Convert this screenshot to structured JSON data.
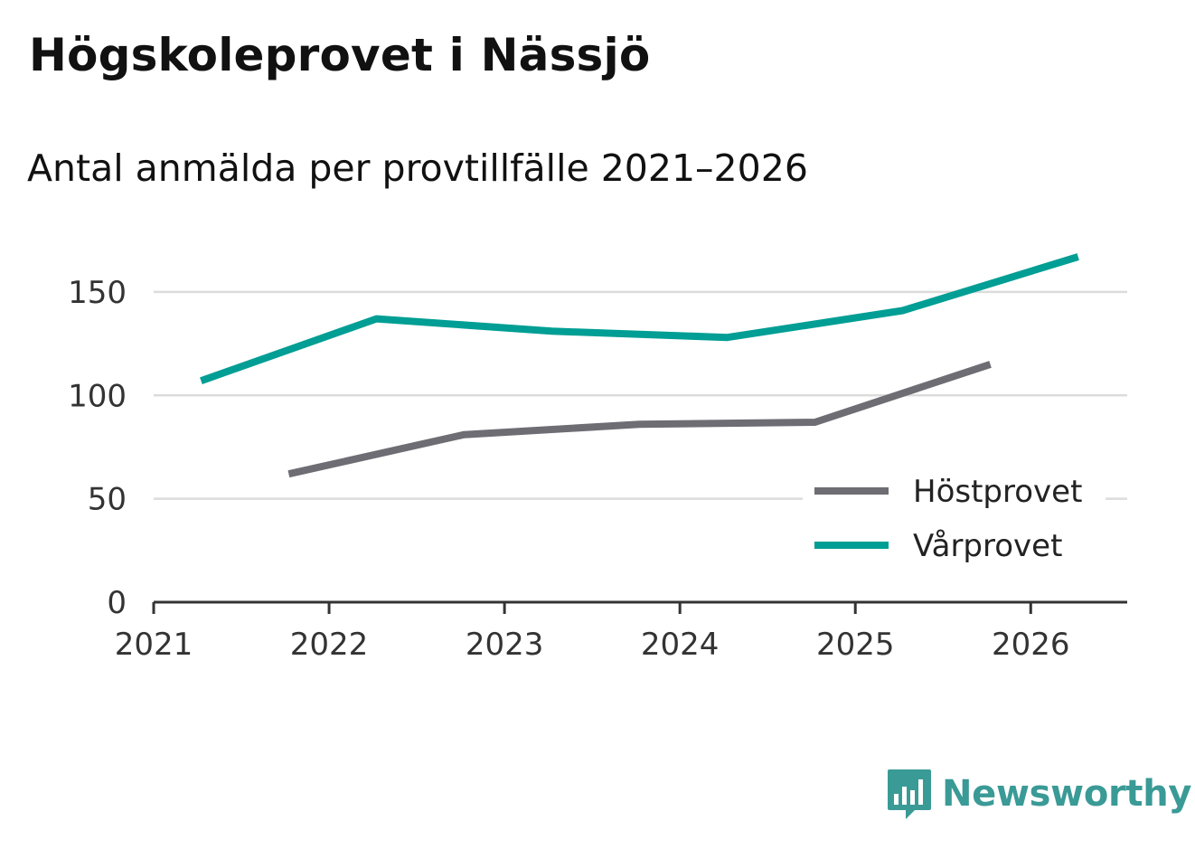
{
  "title": "Högskoleprovet i Nässjö",
  "subtitle": "Antal anmälda per provtillfälle 2021–2026",
  "brand": {
    "name": "Newsworthy",
    "color": "#3a9a96",
    "icon": "bar-chart-speech-icon"
  },
  "chart_data": {
    "type": "line",
    "title": "Högskoleprovet i Nässjö",
    "subtitle": "Antal anmälda per provtillfälle 2021–2026",
    "xlabel": "",
    "ylabel": "",
    "xlim": [
      2021,
      2026.55
    ],
    "ylim": [
      0,
      160
    ],
    "x_ticks": [
      "2021",
      "2022",
      "2023",
      "2024",
      "2025",
      "2026"
    ],
    "y_ticks": [
      "0",
      "50",
      "100",
      "150"
    ],
    "grid": true,
    "legend_position": "bottom-right",
    "series": [
      {
        "name": "Höstprovet",
        "color": "#6e6d74",
        "points": [
          {
            "x": 2021.77,
            "y": 62
          },
          {
            "x": 2022.77,
            "y": 81
          },
          {
            "x": 2023.77,
            "y": 86
          },
          {
            "x": 2024.77,
            "y": 87
          },
          {
            "x": 2025.77,
            "y": 115
          }
        ]
      },
      {
        "name": "Vårprovet",
        "color": "#009e94",
        "points": [
          {
            "x": 2021.27,
            "y": 107
          },
          {
            "x": 2022.27,
            "y": 137
          },
          {
            "x": 2023.27,
            "y": 131
          },
          {
            "x": 2024.27,
            "y": 128
          },
          {
            "x": 2025.27,
            "y": 141
          },
          {
            "x": 2026.27,
            "y": 167
          }
        ]
      }
    ]
  }
}
